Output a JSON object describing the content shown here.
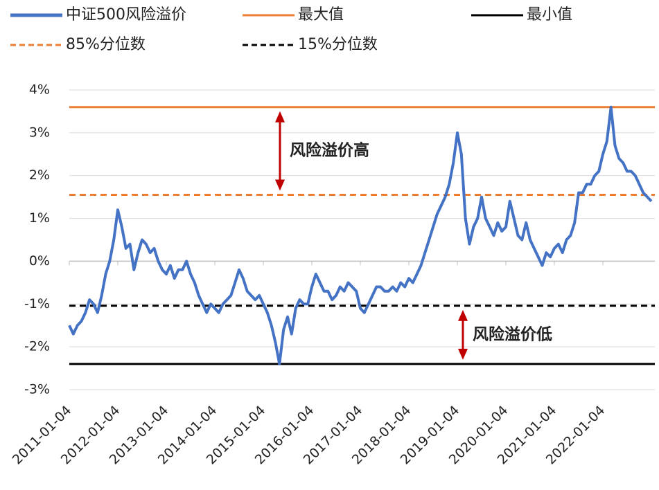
{
  "chart_data": {
    "type": "line",
    "categories": [
      "2011-01-04",
      null,
      null,
      null,
      null,
      null,
      null,
      null,
      null,
      null,
      null,
      null,
      "2012-01-04",
      null,
      null,
      null,
      null,
      null,
      null,
      null,
      null,
      null,
      null,
      null,
      "2013-01-04",
      null,
      null,
      null,
      null,
      null,
      null,
      null,
      null,
      null,
      null,
      null,
      "2014-01-04",
      null,
      null,
      null,
      null,
      null,
      null,
      null,
      null,
      null,
      null,
      null,
      "2015-01-04",
      null,
      null,
      null,
      null,
      null,
      null,
      null,
      null,
      null,
      null,
      null,
      "2016-01-04",
      null,
      null,
      null,
      null,
      null,
      null,
      null,
      null,
      null,
      null,
      null,
      "2017-01-04",
      null,
      null,
      null,
      null,
      null,
      null,
      null,
      null,
      null,
      null,
      null,
      "2018-01-04",
      null,
      null,
      null,
      null,
      null,
      null,
      null,
      null,
      null,
      null,
      null,
      "2019-01-04",
      null,
      null,
      null,
      null,
      null,
      null,
      null,
      null,
      null,
      null,
      null,
      "2020-01-04",
      null,
      null,
      null,
      null,
      null,
      null,
      null,
      null,
      null,
      null,
      null,
      "2021-01-04",
      null,
      null,
      null,
      null,
      null,
      null,
      null,
      null,
      null,
      null,
      null,
      "2022-01-04",
      null,
      null,
      null,
      null,
      null,
      null,
      null,
      null,
      null,
      null,
      null,
      null
    ],
    "series": [
      {
        "name": "中证500风险溢价",
        "color": "#4472c4",
        "values": [
          -1.5,
          -1.7,
          -1.5,
          -1.4,
          -1.2,
          -0.9,
          -1.0,
          -1.2,
          -0.8,
          -0.3,
          0.0,
          0.5,
          1.2,
          0.8,
          0.3,
          0.4,
          -0.2,
          0.2,
          0.5,
          0.4,
          0.2,
          0.3,
          0.0,
          -0.2,
          -0.3,
          -0.1,
          -0.4,
          -0.2,
          -0.2,
          0.0,
          -0.3,
          -0.5,
          -0.8,
          -1.0,
          -1.2,
          -1.0,
          -1.1,
          -1.2,
          -1.0,
          -0.9,
          -0.8,
          -0.5,
          -0.2,
          -0.4,
          -0.7,
          -0.8,
          -0.9,
          -0.8,
          -1.0,
          -1.2,
          -1.5,
          -1.9,
          -2.4,
          -1.6,
          -1.3,
          -1.7,
          -1.1,
          -0.9,
          -1.0,
          -1.0,
          -0.6,
          -0.3,
          -0.5,
          -0.7,
          -0.7,
          -0.9,
          -0.8,
          -0.6,
          -0.7,
          -0.5,
          -0.6,
          -0.7,
          -1.1,
          -1.2,
          -1.0,
          -0.8,
          -0.6,
          -0.6,
          -0.7,
          -0.7,
          -0.6,
          -0.7,
          -0.5,
          -0.6,
          -0.4,
          -0.5,
          -0.3,
          -0.1,
          0.2,
          0.5,
          0.8,
          1.1,
          1.3,
          1.5,
          1.8,
          2.3,
          3.0,
          2.5,
          1.0,
          0.4,
          0.8,
          1.0,
          1.5,
          1.0,
          0.8,
          0.6,
          0.9,
          0.7,
          0.8,
          1.4,
          1.0,
          0.6,
          0.5,
          0.9,
          0.5,
          0.3,
          0.1,
          -0.1,
          0.2,
          0.1,
          0.3,
          0.4,
          0.2,
          0.5,
          0.6,
          0.9,
          1.6,
          1.6,
          1.8,
          1.8,
          2.0,
          2.1,
          2.5,
          2.8,
          3.6,
          2.7,
          2.4,
          2.3,
          2.1,
          2.1,
          2.0,
          1.8,
          1.6,
          1.5,
          1.4
        ]
      }
    ],
    "reference_lines": [
      {
        "name": "最大值",
        "value": 3.6,
        "color": "#ed7d31",
        "dashed": false
      },
      {
        "name": "最小值",
        "value": -2.4,
        "color": "#000000",
        "dashed": false
      },
      {
        "name": "85%分位数",
        "value": 1.55,
        "color": "#ed7d31",
        "dashed": true
      },
      {
        "name": "15%分位数",
        "value": -1.04,
        "color": "#000000",
        "dashed": true
      }
    ],
    "annotations": [
      "风险溢价高",
      "风险溢价低"
    ],
    "ylim": [
      -3,
      4
    ],
    "yticks": [
      {
        "value": -3,
        "label": "-3%"
      },
      {
        "value": -2,
        "label": "-2%"
      },
      {
        "value": -1,
        "label": "-1%"
      },
      {
        "value": 0,
        "label": "0%"
      },
      {
        "value": 1,
        "label": "1%"
      },
      {
        "value": 2,
        "label": "2%"
      },
      {
        "value": 3,
        "label": "3%"
      },
      {
        "value": 4,
        "label": "4%"
      }
    ],
    "grid": true
  }
}
